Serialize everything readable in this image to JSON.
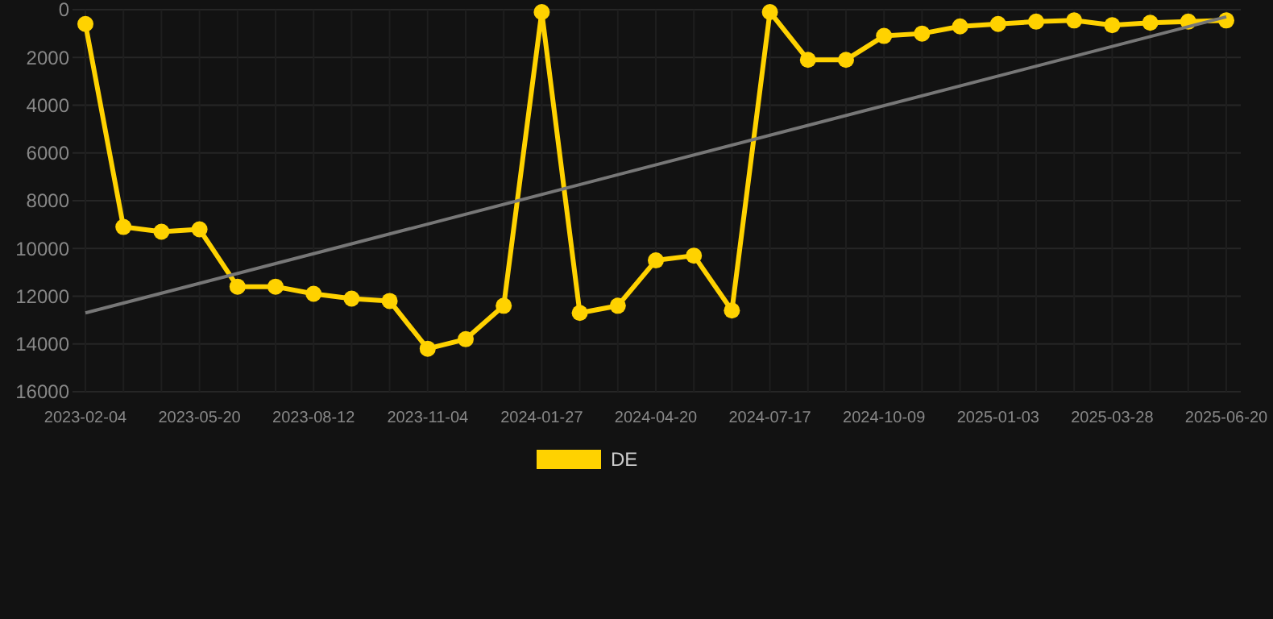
{
  "chart_data": {
    "type": "line",
    "categories": [
      "2023-02-04",
      null,
      null,
      "2023-05-20",
      null,
      null,
      "2023-08-12",
      null,
      null,
      "2023-11-04",
      null,
      null,
      "2024-01-27",
      null,
      null,
      "2024-04-20",
      null,
      null,
      "2024-07-17",
      null,
      null,
      "2024-10-09",
      null,
      null,
      "2025-01-03",
      null,
      null,
      "2025-03-28",
      null,
      null,
      "2025-06-20"
    ],
    "series": [
      {
        "name": "DE",
        "color": "#ffd200",
        "marker": "circle",
        "values": [
          600,
          9100,
          9300,
          9200,
          11600,
          11600,
          11900,
          12100,
          12200,
          14200,
          13800,
          12400,
          100,
          12700,
          12400,
          10500,
          10300,
          12600,
          100,
          2100,
          2100,
          1100,
          1000,
          700,
          600,
          500,
          450,
          650,
          550,
          500,
          450
        ]
      },
      {
        "color": "#777777",
        "marker": "none",
        "values": [
          12700,
          null,
          null,
          null,
          null,
          null,
          null,
          null,
          null,
          null,
          null,
          null,
          null,
          null,
          null,
          null,
          null,
          null,
          null,
          null,
          null,
          null,
          null,
          null,
          null,
          null,
          null,
          null,
          null,
          null,
          300
        ]
      }
    ],
    "ylim": [
      16000,
      0
    ],
    "yticks": [
      0,
      2000,
      4000,
      6000,
      8000,
      10000,
      12000,
      14000,
      16000
    ],
    "grid": true,
    "legend": "bottom"
  }
}
